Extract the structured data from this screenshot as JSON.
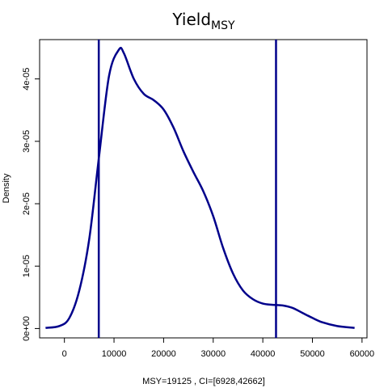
{
  "chart_data": {
    "type": "line",
    "title": "Yield",
    "title_subscript": "MSY",
    "xlabel": "MSY=19125 , CI=[6928,42662]",
    "ylabel": "Density",
    "xlim": [
      -5000,
      61000
    ],
    "ylim": [
      -1.5e-06,
      4.63e-05
    ],
    "x_ticks": [
      0,
      10000,
      20000,
      30000,
      40000,
      50000,
      60000
    ],
    "x_tick_labels": [
      "0",
      "10000",
      "20000",
      "30000",
      "40000",
      "50000",
      "60000"
    ],
    "y_ticks": [
      0,
      1e-05,
      2e-05,
      3e-05,
      4e-05
    ],
    "y_tick_labels": [
      "0e+00",
      "1e-05",
      "2e-05",
      "3e-05",
      "4e-05"
    ],
    "grid": false,
    "line_color": "#00008B",
    "series": [
      {
        "x": [
          -3800,
          -1000,
          1000,
          3000,
          5000,
          6928,
          9000,
          11000,
          12000,
          14000,
          16000,
          18000,
          20000,
          22000,
          24000,
          26000,
          28000,
          30000,
          32000,
          34000,
          36000,
          38000,
          40000,
          42000,
          44000,
          46000,
          48000,
          50000,
          52000,
          55000,
          58500
        ],
        "y": [
          1e-07,
          4e-07,
          1.7e-06,
          6.1e-06,
          1.43e-05,
          2.72e-05,
          4.05e-05,
          4.47e-05,
          4.41e-05,
          4e-05,
          3.76e-05,
          3.66e-05,
          3.51e-05,
          3.22e-05,
          2.84e-05,
          2.51e-05,
          2.2e-05,
          1.8e-05,
          1.29e-05,
          8.8e-06,
          6.1e-06,
          4.7e-06,
          4e-06,
          3.8e-06,
          3.7e-06,
          3.3e-06,
          2.5e-06,
          1.7e-06,
          1e-06,
          4e-07,
          1e-07
        ]
      }
    ],
    "vlines": [
      6928,
      42662
    ]
  }
}
